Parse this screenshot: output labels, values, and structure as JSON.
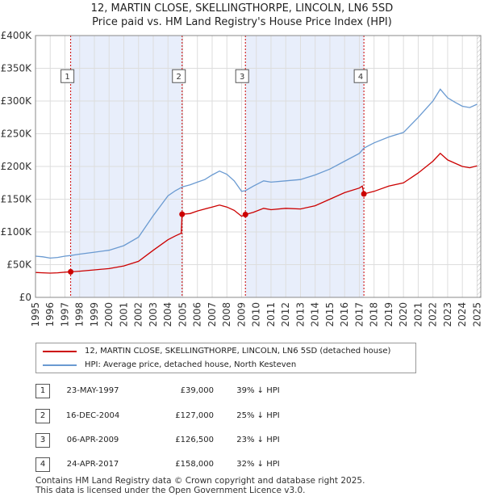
{
  "title_line1": "12, MARTIN CLOSE, SKELLINGTHORPE, LINCOLN, LN6 5SD",
  "title_line2": "Price paid vs. HM Land Registry's House Price Index (HPI)",
  "chart_data": {
    "type": "line",
    "xlim": [
      1995,
      2025.25
    ],
    "ylim": [
      0,
      400000
    ],
    "y_ticks": [
      0,
      50000,
      100000,
      150000,
      200000,
      250000,
      300000,
      350000,
      400000
    ],
    "y_tick_labels": [
      "£0",
      "£50K",
      "£100K",
      "£150K",
      "£200K",
      "£250K",
      "£300K",
      "£350K",
      "£400K"
    ],
    "x_ticks": [
      1995,
      1996,
      1997,
      1998,
      1999,
      2000,
      2001,
      2002,
      2003,
      2004,
      2005,
      2006,
      2007,
      2008,
      2009,
      2010,
      2011,
      2012,
      2013,
      2014,
      2015,
      2016,
      2017,
      2018,
      2019,
      2020,
      2021,
      2022,
      2023,
      2024,
      2025
    ],
    "grid": true,
    "shaded_spans": [
      [
        1997.39,
        2004.96
      ],
      [
        2009.26,
        2017.31
      ]
    ],
    "colors": {
      "property": "#cc0000",
      "hpi": "#6a9ad1",
      "shade": "#e8eefb",
      "marker_line": "#cc0000"
    },
    "series": [
      {
        "name": "12, MARTIN CLOSE, SKELLINGTHORPE, LINCOLN, LN6 5SD (detached house)",
        "color": "#cc0000",
        "points": [
          [
            1995.0,
            38000
          ],
          [
            1995.5,
            37500
          ],
          [
            1996.0,
            37000
          ],
          [
            1996.5,
            37500
          ],
          [
            1997.0,
            38500
          ],
          [
            1997.39,
            39000
          ],
          [
            1998.0,
            40000
          ],
          [
            1999.0,
            42000
          ],
          [
            2000.0,
            44000
          ],
          [
            2001.0,
            48000
          ],
          [
            2002.0,
            55000
          ],
          [
            2003.0,
            72000
          ],
          [
            2003.5,
            80000
          ],
          [
            2004.0,
            88000
          ],
          [
            2004.5,
            94000
          ],
          [
            2004.9,
            98000
          ],
          [
            2004.96,
            127000
          ],
          [
            2005.5,
            128000
          ],
          [
            2006.0,
            132000
          ],
          [
            2006.5,
            135000
          ],
          [
            2007.0,
            138000
          ],
          [
            2007.5,
            141000
          ],
          [
            2008.0,
            138000
          ],
          [
            2008.5,
            133000
          ],
          [
            2009.0,
            124000
          ],
          [
            2009.26,
            126500
          ],
          [
            2009.8,
            130000
          ],
          [
            2010.5,
            136000
          ],
          [
            2011.0,
            134000
          ],
          [
            2012.0,
            136000
          ],
          [
            2013.0,
            135000
          ],
          [
            2014.0,
            140000
          ],
          [
            2015.0,
            150000
          ],
          [
            2016.0,
            160000
          ],
          [
            2017.0,
            167000
          ],
          [
            2017.2,
            170000
          ],
          [
            2017.31,
            158000
          ],
          [
            2018.0,
            162000
          ],
          [
            2019.0,
            170000
          ],
          [
            2020.0,
            175000
          ],
          [
            2021.0,
            190000
          ],
          [
            2022.0,
            208000
          ],
          [
            2022.5,
            220000
          ],
          [
            2023.0,
            210000
          ],
          [
            2023.5,
            205000
          ],
          [
            2024.0,
            200000
          ],
          [
            2024.5,
            198000
          ],
          [
            2025.0,
            201000
          ]
        ]
      },
      {
        "name": "HPI: Average price, detached house, North Kesteven",
        "color": "#6a9ad1",
        "points": [
          [
            1995.0,
            63000
          ],
          [
            1995.5,
            62000
          ],
          [
            1996.0,
            60000
          ],
          [
            1996.5,
            61000
          ],
          [
            1997.0,
            63000
          ],
          [
            1997.39,
            64000
          ],
          [
            1998.0,
            66000
          ],
          [
            1999.0,
            69000
          ],
          [
            2000.0,
            72000
          ],
          [
            2001.0,
            79000
          ],
          [
            2002.0,
            92000
          ],
          [
            2003.0,
            125000
          ],
          [
            2003.5,
            140000
          ],
          [
            2004.0,
            155000
          ],
          [
            2004.5,
            163000
          ],
          [
            2005.0,
            169000
          ],
          [
            2005.5,
            172000
          ],
          [
            2006.0,
            176000
          ],
          [
            2006.5,
            180000
          ],
          [
            2007.0,
            187000
          ],
          [
            2007.5,
            193000
          ],
          [
            2008.0,
            188000
          ],
          [
            2008.5,
            178000
          ],
          [
            2009.0,
            162000
          ],
          [
            2009.26,
            163000
          ],
          [
            2009.8,
            170000
          ],
          [
            2010.5,
            178000
          ],
          [
            2011.0,
            176000
          ],
          [
            2012.0,
            178000
          ],
          [
            2013.0,
            180000
          ],
          [
            2014.0,
            187000
          ],
          [
            2015.0,
            196000
          ],
          [
            2016.0,
            208000
          ],
          [
            2017.0,
            220000
          ],
          [
            2017.31,
            228000
          ],
          [
            2018.0,
            236000
          ],
          [
            2019.0,
            245000
          ],
          [
            2020.0,
            252000
          ],
          [
            2021.0,
            275000
          ],
          [
            2022.0,
            300000
          ],
          [
            2022.5,
            318000
          ],
          [
            2023.0,
            305000
          ],
          [
            2023.5,
            298000
          ],
          [
            2024.0,
            292000
          ],
          [
            2024.5,
            290000
          ],
          [
            2025.0,
            295000
          ]
        ]
      }
    ],
    "markers": [
      {
        "label": "1",
        "x": 1997.39,
        "y": 39000
      },
      {
        "label": "2",
        "x": 2004.96,
        "y": 127000
      },
      {
        "label": "3",
        "x": 2009.26,
        "y": 126500
      },
      {
        "label": "4",
        "x": 2017.31,
        "y": 158000
      }
    ],
    "marker_box_y": 338000
  },
  "legend": {
    "property_label": "12, MARTIN CLOSE, SKELLINGTHORPE, LINCOLN, LN6 5SD (detached house)",
    "hpi_label": "HPI: Average price, detached house, North Kesteven"
  },
  "transactions": [
    {
      "num": "1",
      "date": "23-MAY-1997",
      "price": "£39,000",
      "hpi": "39% ↓ HPI"
    },
    {
      "num": "2",
      "date": "16-DEC-2004",
      "price": "£127,000",
      "hpi": "25% ↓ HPI"
    },
    {
      "num": "3",
      "date": "06-APR-2009",
      "price": "£126,500",
      "hpi": "23% ↓ HPI"
    },
    {
      "num": "4",
      "date": "24-APR-2017",
      "price": "£158,000",
      "hpi": "32% ↓ HPI"
    }
  ],
  "footer_line1": "Contains HM Land Registry data © Crown copyright and database right 2025.",
  "footer_line2": "This data is licensed under the Open Government Licence v3.0."
}
